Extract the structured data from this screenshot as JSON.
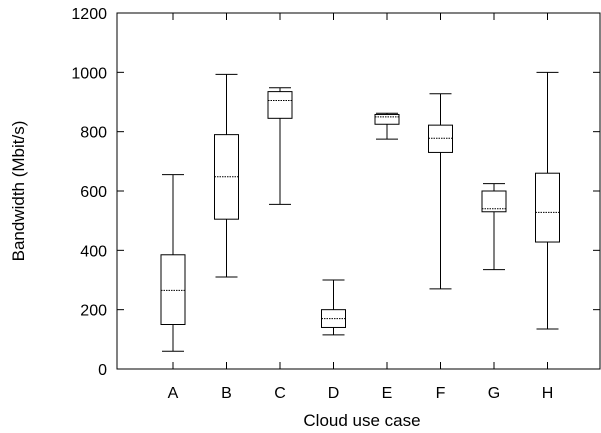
{
  "chart_data": {
    "type": "box",
    "xlabel": "Cloud use case",
    "ylabel": "Bandwidth (Mbit/s)",
    "ylim": [
      0,
      1200
    ],
    "yticks": [
      0,
      200,
      400,
      600,
      800,
      1000,
      1200
    ],
    "grid": false,
    "categories": [
      "A",
      "B",
      "C",
      "D",
      "E",
      "F",
      "G",
      "H"
    ],
    "boxes": [
      {
        "category": "A",
        "whisker_low": 60,
        "q1": 150,
        "median": 265,
        "q3": 385,
        "whisker_high": 655
      },
      {
        "category": "B",
        "whisker_low": 310,
        "q1": 505,
        "median": 648,
        "q3": 790,
        "whisker_high": 993
      },
      {
        "category": "C",
        "whisker_low": 555,
        "q1": 845,
        "median": 905,
        "q3": 935,
        "whisker_high": 948
      },
      {
        "category": "D",
        "whisker_low": 115,
        "q1": 140,
        "median": 170,
        "q3": 200,
        "whisker_high": 300
      },
      {
        "category": "E",
        "whisker_low": 775,
        "q1": 825,
        "median": 850,
        "q3": 858,
        "whisker_high": 862
      },
      {
        "category": "F",
        "whisker_low": 270,
        "q1": 730,
        "median": 778,
        "q3": 822,
        "whisker_high": 928
      },
      {
        "category": "G",
        "whisker_low": 335,
        "q1": 530,
        "median": 540,
        "q3": 600,
        "whisker_high": 625
      },
      {
        "category": "H",
        "whisker_low": 135,
        "q1": 428,
        "median": 528,
        "q3": 660,
        "whisker_high": 1000
      }
    ],
    "style": {
      "stroke_color": "#000000",
      "box_fill": "#ffffff",
      "median_style": "dotted"
    }
  }
}
